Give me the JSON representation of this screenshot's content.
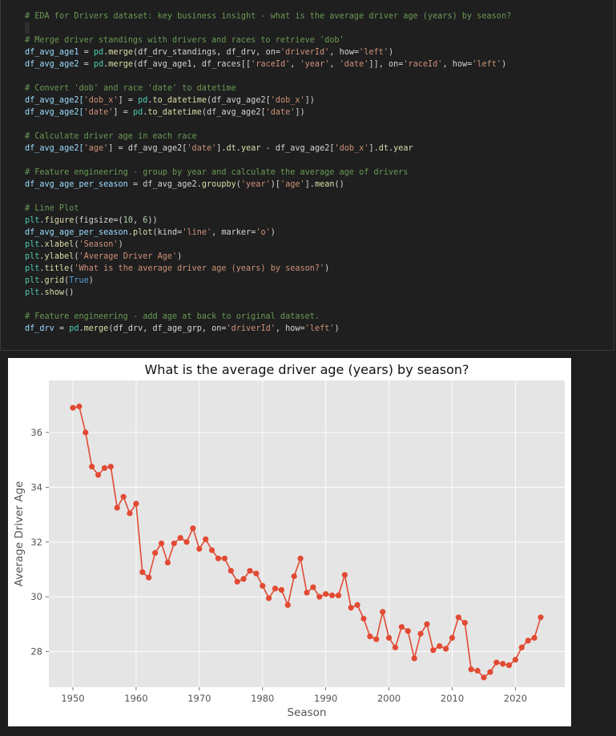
{
  "code_cell": {
    "lines": [
      [
        {
          "t": "# EDA for Drivers dataset: key business insight - what is the average driver age (years) by season?",
          "c": "comment"
        }
      ],
      [],
      [
        {
          "t": "# Merge driver standings with drivers and races to retrieve 'dob'",
          "c": "comment"
        }
      ],
      [
        {
          "t": "df_avg_age1",
          "c": "var"
        },
        {
          "t": " = ",
          "c": "op"
        },
        {
          "t": "pd",
          "c": "mod"
        },
        {
          "t": ".",
          "c": "op"
        },
        {
          "t": "merge",
          "c": "fn"
        },
        {
          "t": "(df_drv_standings, df_drv, on=",
          "c": "op"
        },
        {
          "t": "'driverId'",
          "c": "str"
        },
        {
          "t": ", how=",
          "c": "op"
        },
        {
          "t": "'left'",
          "c": "str"
        },
        {
          "t": ")",
          "c": "op"
        }
      ],
      [
        {
          "t": "df_avg_age2",
          "c": "var"
        },
        {
          "t": " = ",
          "c": "op"
        },
        {
          "t": "pd",
          "c": "mod"
        },
        {
          "t": ".",
          "c": "op"
        },
        {
          "t": "merge",
          "c": "fn"
        },
        {
          "t": "(df_avg_age1, df_races[[",
          "c": "op"
        },
        {
          "t": "'raceId'",
          "c": "str"
        },
        {
          "t": ", ",
          "c": "op"
        },
        {
          "t": "'year'",
          "c": "str"
        },
        {
          "t": ", ",
          "c": "op"
        },
        {
          "t": "'date'",
          "c": "str"
        },
        {
          "t": "]], on=",
          "c": "op"
        },
        {
          "t": "'raceId'",
          "c": "str"
        },
        {
          "t": ", how=",
          "c": "op"
        },
        {
          "t": "'left'",
          "c": "str"
        },
        {
          "t": ")",
          "c": "op"
        }
      ],
      [],
      [
        {
          "t": "# Convert 'dob' and race 'date' to datetime",
          "c": "comment"
        }
      ],
      [
        {
          "t": "df_avg_age2[",
          "c": "var"
        },
        {
          "t": "'dob_x'",
          "c": "str"
        },
        {
          "t": "] = ",
          "c": "op"
        },
        {
          "t": "pd",
          "c": "mod"
        },
        {
          "t": ".",
          "c": "op"
        },
        {
          "t": "to_datetime",
          "c": "fn"
        },
        {
          "t": "(df_avg_age2[",
          "c": "op"
        },
        {
          "t": "'dob_x'",
          "c": "str"
        },
        {
          "t": "])",
          "c": "op"
        }
      ],
      [
        {
          "t": "df_avg_age2[",
          "c": "var"
        },
        {
          "t": "'date'",
          "c": "str"
        },
        {
          "t": "] = ",
          "c": "op"
        },
        {
          "t": "pd",
          "c": "mod"
        },
        {
          "t": ".",
          "c": "op"
        },
        {
          "t": "to_datetime",
          "c": "fn"
        },
        {
          "t": "(df_avg_age2[",
          "c": "op"
        },
        {
          "t": "'date'",
          "c": "str"
        },
        {
          "t": "])",
          "c": "op"
        }
      ],
      [],
      [
        {
          "t": "# Calculate driver age in each race",
          "c": "comment"
        }
      ],
      [
        {
          "t": "df_avg_age2[",
          "c": "var"
        },
        {
          "t": "'age'",
          "c": "str"
        },
        {
          "t": "] = df_avg_age2[",
          "c": "op"
        },
        {
          "t": "'date'",
          "c": "str"
        },
        {
          "t": "].",
          "c": "op"
        },
        {
          "t": "dt",
          "c": "fn"
        },
        {
          "t": ".",
          "c": "op"
        },
        {
          "t": "year",
          "c": "fn"
        },
        {
          "t": " - df_avg_age2[",
          "c": "op"
        },
        {
          "t": "'dob_x'",
          "c": "str"
        },
        {
          "t": "].",
          "c": "op"
        },
        {
          "t": "dt",
          "c": "fn"
        },
        {
          "t": ".",
          "c": "op"
        },
        {
          "t": "year",
          "c": "fn"
        }
      ],
      [],
      [
        {
          "t": "# Feature engineering - group by year and calculate the average age of drivers",
          "c": "comment"
        }
      ],
      [
        {
          "t": "df_avg_age_per_season",
          "c": "var"
        },
        {
          "t": " = df_avg_age2.",
          "c": "op"
        },
        {
          "t": "groupby",
          "c": "fn"
        },
        {
          "t": "(",
          "c": "op"
        },
        {
          "t": "'year'",
          "c": "str"
        },
        {
          "t": ")[",
          "c": "op"
        },
        {
          "t": "'age'",
          "c": "str"
        },
        {
          "t": "].",
          "c": "op"
        },
        {
          "t": "mean",
          "c": "fn"
        },
        {
          "t": "()",
          "c": "op"
        }
      ],
      [],
      [
        {
          "t": "# Line Plot",
          "c": "comment"
        }
      ],
      [
        {
          "t": "plt",
          "c": "mod"
        },
        {
          "t": ".",
          "c": "op"
        },
        {
          "t": "figure",
          "c": "fn"
        },
        {
          "t": "(figsize=(",
          "c": "op"
        },
        {
          "t": "10",
          "c": "num"
        },
        {
          "t": ", ",
          "c": "op"
        },
        {
          "t": "6",
          "c": "num"
        },
        {
          "t": "))",
          "c": "op"
        }
      ],
      [
        {
          "t": "df_avg_age_per_season",
          "c": "var"
        },
        {
          "t": ".",
          "c": "op"
        },
        {
          "t": "plot",
          "c": "fn"
        },
        {
          "t": "(kind=",
          "c": "op"
        },
        {
          "t": "'line'",
          "c": "str"
        },
        {
          "t": ", marker=",
          "c": "op"
        },
        {
          "t": "'o'",
          "c": "str"
        },
        {
          "t": ")",
          "c": "op"
        }
      ],
      [
        {
          "t": "plt",
          "c": "mod"
        },
        {
          "t": ".",
          "c": "op"
        },
        {
          "t": "xlabel",
          "c": "fn"
        },
        {
          "t": "(",
          "c": "op"
        },
        {
          "t": "'Season'",
          "c": "str"
        },
        {
          "t": ")",
          "c": "op"
        }
      ],
      [
        {
          "t": "plt",
          "c": "mod"
        },
        {
          "t": ".",
          "c": "op"
        },
        {
          "t": "ylabel",
          "c": "fn"
        },
        {
          "t": "(",
          "c": "op"
        },
        {
          "t": "'Average Driver Age'",
          "c": "str"
        },
        {
          "t": ")",
          "c": "op"
        }
      ],
      [
        {
          "t": "plt",
          "c": "mod"
        },
        {
          "t": ".",
          "c": "op"
        },
        {
          "t": "title",
          "c": "fn"
        },
        {
          "t": "(",
          "c": "op"
        },
        {
          "t": "'What is the average driver age (years) by season?'",
          "c": "str"
        },
        {
          "t": ")",
          "c": "op"
        }
      ],
      [
        {
          "t": "plt",
          "c": "mod"
        },
        {
          "t": ".",
          "c": "op"
        },
        {
          "t": "grid",
          "c": "fn"
        },
        {
          "t": "(",
          "c": "op"
        },
        {
          "t": "True",
          "c": "kw"
        },
        {
          "t": ")",
          "c": "op"
        }
      ],
      [
        {
          "t": "plt",
          "c": "mod"
        },
        {
          "t": ".",
          "c": "op"
        },
        {
          "t": "show",
          "c": "fn"
        },
        {
          "t": "()",
          "c": "op"
        }
      ],
      [],
      [
        {
          "t": "# Feature engineering - add age at back to original dataset.",
          "c": "comment"
        }
      ],
      [
        {
          "t": "df_drv",
          "c": "var"
        },
        {
          "t": " = ",
          "c": "op"
        },
        {
          "t": "pd",
          "c": "mod"
        },
        {
          "t": ".",
          "c": "op"
        },
        {
          "t": "merge",
          "c": "fn"
        },
        {
          "t": "(df_drv, df_age_grp, on=",
          "c": "op"
        },
        {
          "t": "'driverId'",
          "c": "str"
        },
        {
          "t": ", how=",
          "c": "op"
        },
        {
          "t": "'left'",
          "c": "str"
        },
        {
          "t": ")",
          "c": "op"
        }
      ]
    ]
  },
  "colors": {
    "line": "#e24a33",
    "plot_bg": "#e5e5e5",
    "grid": "#ffffff",
    "tick_text": "#555555"
  },
  "chart_data": {
    "type": "line",
    "title": "What is the average driver age (years) by season?",
    "xlabel": "Season",
    "ylabel": "Average Driver Age",
    "xlim": [
      1946.2,
      2027.8
    ],
    "ylim": [
      26.7,
      37.9
    ],
    "xticks": [
      1950,
      1960,
      1970,
      1980,
      1990,
      2000,
      2010,
      2020
    ],
    "yticks": [
      28,
      30,
      32,
      34,
      36
    ],
    "grid": true,
    "marker": "o",
    "x": [
      1950,
      1951,
      1952,
      1953,
      1954,
      1955,
      1956,
      1957,
      1958,
      1959,
      1960,
      1961,
      1962,
      1963,
      1964,
      1965,
      1966,
      1967,
      1968,
      1969,
      1970,
      1971,
      1972,
      1973,
      1974,
      1975,
      1976,
      1977,
      1978,
      1979,
      1980,
      1981,
      1982,
      1983,
      1984,
      1985,
      1986,
      1987,
      1988,
      1989,
      1990,
      1991,
      1992,
      1993,
      1994,
      1995,
      1996,
      1997,
      1998,
      1999,
      2000,
      2001,
      2002,
      2003,
      2004,
      2005,
      2006,
      2007,
      2008,
      2009,
      2010,
      2011,
      2012,
      2013,
      2014,
      2015,
      2016,
      2017,
      2018,
      2019,
      2020,
      2021,
      2022,
      2023,
      2024
    ],
    "y": [
      36.9,
      36.95,
      36.0,
      34.75,
      34.45,
      34.7,
      34.75,
      33.25,
      33.65,
      33.05,
      33.4,
      30.9,
      30.7,
      31.6,
      31.95,
      31.25,
      31.95,
      32.15,
      32.0,
      32.5,
      31.75,
      32.1,
      31.7,
      31.4,
      31.4,
      30.95,
      30.55,
      30.65,
      30.95,
      30.85,
      30.4,
      29.95,
      30.3,
      30.25,
      29.7,
      30.75,
      31.4,
      30.15,
      30.35,
      30.0,
      30.1,
      30.05,
      30.05,
      30.8,
      29.6,
      29.7,
      29.2,
      28.55,
      28.45,
      29.45,
      28.5,
      28.15,
      28.9,
      28.75,
      27.75,
      28.65,
      29.0,
      28.05,
      28.2,
      28.1,
      28.5,
      29.25,
      29.05,
      27.35,
      27.3,
      27.05,
      27.25,
      27.6,
      27.55,
      27.5,
      27.7,
      28.15,
      28.4,
      28.5,
      29.25
    ]
  }
}
